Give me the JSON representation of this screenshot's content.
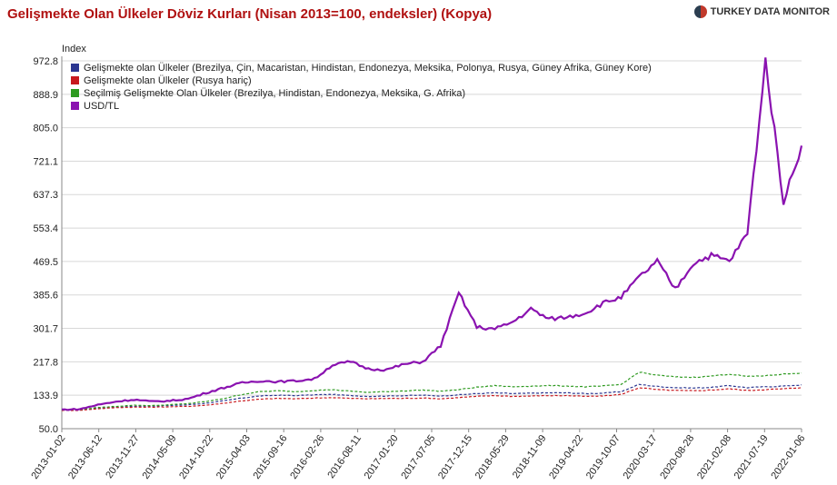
{
  "header": {
    "title": "Gelişmekte Olan Ülkeler Döviz Kurları (Nisan 2013=100, endeksler) (Kopya)",
    "brand": "TURKEY DATA MONITOR"
  },
  "colors": {
    "gelismekte_tum": "#2a3590",
    "gelismekte_rusya_haric": "#c8181e",
    "secilmis": "#2e9a20",
    "usdtl": "#8a12b0",
    "grid": "#d8d8d8"
  },
  "chart_data": {
    "type": "line",
    "ylabel": "Index",
    "ylim": [
      50.0,
      1000
    ],
    "yticks": [
      "972.8",
      "888.9",
      "805.0",
      "721.1",
      "637.3",
      "553.4",
      "469.5",
      "385.6",
      "301.7",
      "217.8",
      "133.9",
      "50.0"
    ],
    "ytick_values": [
      972.8,
      888.9,
      805.0,
      721.1,
      637.3,
      553.4,
      469.5,
      385.6,
      301.7,
      217.8,
      133.9,
      50.0
    ],
    "xticks": [
      "2013-01-02",
      "2013-06-12",
      "2013-11-27",
      "2014-05-09",
      "2014-10-22",
      "2015-04-03",
      "2015-09-16",
      "2016-02-26",
      "2016-08-11",
      "2017-01-20",
      "2017-07-05",
      "2017-12-15",
      "2018-05-29",
      "2018-11-09",
      "2019-04-22",
      "2019-10-07",
      "2020-03-17",
      "2020-08-28",
      "2021-02-08",
      "2021-07-19",
      "2022-01-06"
    ],
    "grid": true,
    "legend_position": "top-left",
    "series": [
      {
        "name": "Gelişmekte olan Ülkeler (Brezilya, Çin, Macaristan, Hindistan, Endonezya, Meksika, Polonya, Rusya, Güney Afrika, Güney Kore)",
        "color_key": "gelismekte_tum",
        "style": "dashed",
        "values": [
          96,
          97,
          101,
          104,
          106,
          107,
          108,
          110,
          114,
          120,
          127,
          132,
          134,
          133,
          135,
          136,
          133,
          131,
          132,
          133,
          134,
          132,
          135,
          138,
          140,
          138,
          139,
          140,
          140,
          138,
          139,
          143,
          161,
          156,
          153,
          152,
          154,
          158,
          153,
          155,
          157,
          160
        ]
      },
      {
        "name": "Gelişmekte olan Ülkeler (Rusya hariç)",
        "color_key": "gelismekte_rusya_haric",
        "style": "dashed",
        "values": [
          96,
          96,
          100,
          103,
          104,
          104,
          105,
          106,
          109,
          114,
          120,
          124,
          126,
          125,
          127,
          128,
          126,
          125,
          126,
          126,
          127,
          125,
          128,
          131,
          133,
          131,
          132,
          133,
          133,
          131,
          132,
          136,
          153,
          148,
          146,
          145,
          147,
          150,
          146,
          148,
          150,
          153
        ]
      },
      {
        "name": "Seçilmiş Gelişmekte Olan Ülkeler (Brezilya, Hindistan, Endonezya, Meksika, G. Afrika)",
        "color_key": "secilmis",
        "style": "dashed",
        "values": [
          97,
          98,
          103,
          106,
          109,
          108,
          110,
          113,
          118,
          126,
          136,
          143,
          145,
          143,
          146,
          148,
          144,
          141,
          143,
          145,
          147,
          144,
          148,
          154,
          158,
          155,
          157,
          158,
          157,
          155,
          157,
          161,
          192,
          184,
          180,
          179,
          182,
          187,
          181,
          183,
          187,
          190
        ]
      },
      {
        "name": "USD/TL",
        "color_key": "usdtl",
        "style": "solid",
        "values": [
          98,
          99,
          110,
          118,
          123,
          118,
          120,
          125,
          140,
          153,
          165,
          170,
          168,
          170,
          175,
          210,
          218,
          200,
          198,
          212,
          218,
          258,
          390,
          305,
          300,
          318,
          350,
          325,
          330,
          340,
          365,
          380,
          430,
          470,
          400,
          465,
          485,
          470,
          540,
          972.8,
          620,
          760
        ]
      }
    ]
  }
}
